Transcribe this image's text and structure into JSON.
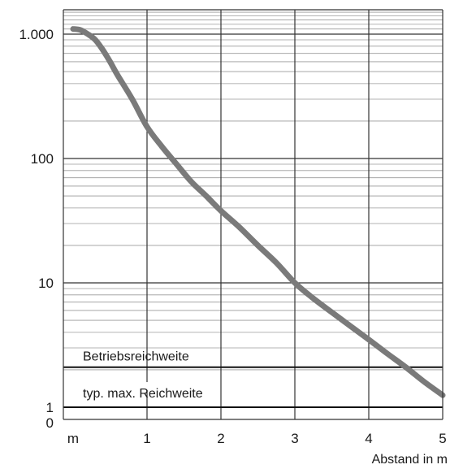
{
  "chart_data": {
    "type": "line",
    "title": "",
    "xlabel": "Abstand in m",
    "ylabel": "",
    "x_scale": "linear",
    "y_scale": "log",
    "xlim": [
      0,
      5
    ],
    "ylim": [
      1,
      2000
    ],
    "grid": true,
    "x_ticks": [
      {
        "value": 0,
        "label": "m"
      },
      {
        "value": 1,
        "label": "1"
      },
      {
        "value": 2,
        "label": "2"
      },
      {
        "value": 3,
        "label": "3"
      },
      {
        "value": 4,
        "label": "4"
      },
      {
        "value": 5,
        "label": "5"
      }
    ],
    "y_ticks": [
      {
        "value": 1000,
        "label": "1.000"
      },
      {
        "value": 100,
        "label": "100"
      },
      {
        "value": 10,
        "label": "10"
      },
      {
        "value": 1,
        "label": "1"
      }
    ],
    "y_zero_label": "0",
    "series": [
      {
        "color": "#7a7a7a",
        "x": [
          0,
          0.1,
          0.2,
          0.3,
          0.4,
          0.5,
          0.6,
          0.8,
          1.0,
          1.2,
          1.4,
          1.6,
          1.8,
          2.0,
          2.25,
          2.5,
          2.75,
          3.0,
          3.25,
          3.5,
          3.75,
          4.0,
          4.25,
          4.5,
          4.75,
          5.0
        ],
        "y": [
          1100,
          1080,
          1000,
          900,
          750,
          600,
          470,
          300,
          180,
          125,
          90,
          65,
          50,
          38,
          28,
          20,
          14.5,
          10,
          7.5,
          5.8,
          4.5,
          3.5,
          2.7,
          2.1,
          1.6,
          1.25
        ]
      }
    ],
    "reference_lines": [
      {
        "label": "Betriebsreichweite",
        "y": 2.1
      },
      {
        "label": "typ. max. Reichweite",
        "y": 1
      }
    ]
  }
}
